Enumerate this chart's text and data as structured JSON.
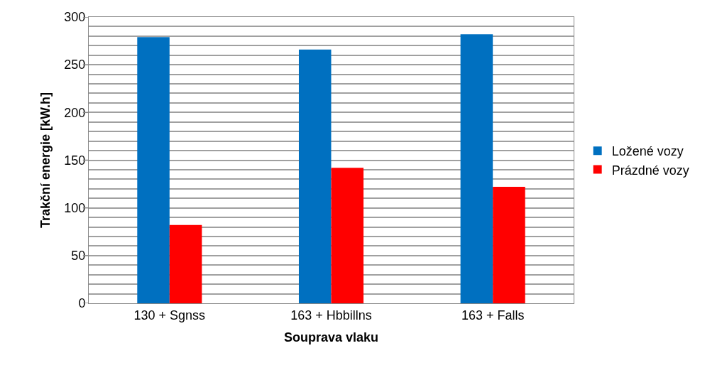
{
  "chart_data": {
    "type": "bar",
    "xlabel": "Souprava vlaku",
    "ylabel": "Trakční energie [kW.h]",
    "categories": [
      "130 + Sgnss",
      "163 + Hbbillns",
      "163 + Falls"
    ],
    "series": [
      {
        "name": "Ložené vozy",
        "color": "#0070c0",
        "values": [
          279,
          266,
          282
        ]
      },
      {
        "name": "Prázdné vozy",
        "color": "#ff0000",
        "values": [
          82,
          142,
          122
        ]
      }
    ],
    "ylim": [
      0,
      300
    ],
    "yticks": [
      0,
      {
        "value": 10,
        "label": null
      },
      {
        "value": 20,
        "label": null
      },
      {
        "value": 30,
        "label": null
      },
      {
        "value": 40,
        "label": null
      },
      50,
      {
        "value": 60,
        "label": null
      },
      {
        "value": 70,
        "label": null
      },
      {
        "value": 80,
        "label": null
      },
      {
        "value": 90,
        "label": null
      },
      100,
      {
        "value": 110,
        "label": null
      },
      {
        "value": 120,
        "label": null
      },
      {
        "value": 130,
        "label": null
      },
      {
        "value": 140,
        "label": null
      },
      150,
      {
        "value": 160,
        "label": null
      },
      {
        "value": 170,
        "label": null
      },
      {
        "value": 180,
        "label": null
      },
      {
        "value": 190,
        "label": null
      },
      200,
      {
        "value": 210,
        "label": null
      },
      {
        "value": 220,
        "label": null
      },
      {
        "value": 230,
        "label": null
      },
      {
        "value": 240,
        "label": null
      },
      250,
      {
        "value": 260,
        "label": null
      },
      {
        "value": 270,
        "label": null
      },
      {
        "value": 280,
        "label": null
      },
      {
        "value": 290,
        "label": null
      },
      300
    ],
    "grid": "y",
    "legend": "right"
  }
}
